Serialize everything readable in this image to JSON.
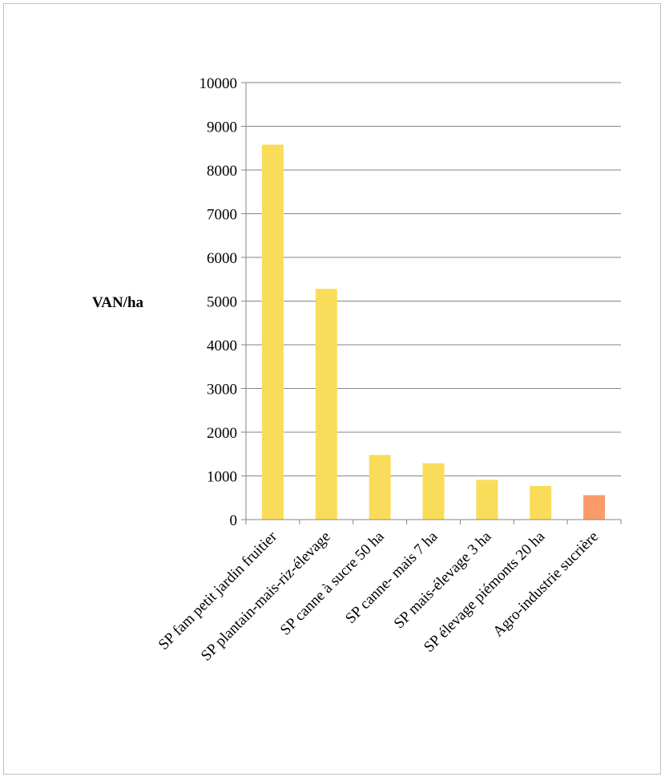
{
  "chart_data": {
    "type": "bar",
    "title": "",
    "xlabel": "",
    "ylabel": "VAN/ha",
    "ylim": [
      0,
      10000
    ],
    "yticks": [
      0,
      1000,
      2000,
      3000,
      4000,
      5000,
      6000,
      7000,
      8000,
      9000,
      10000
    ],
    "grid": true,
    "categories": [
      "SP fam petit jardin fruitier",
      "SP plantain-mais-riz-élevage",
      "SP canne à sucre 50 ha",
      "SP  canne- mais 7 ha",
      "SP mais-élevage 3 ha",
      "SP élevage piémonts 20 ha",
      "Agro-industrie sucrière"
    ],
    "values": [
      8580,
      5280,
      1480,
      1290,
      910,
      770,
      560
    ],
    "colors": [
      "#f9dd5a",
      "#f9dd5a",
      "#f9dd5a",
      "#f9dd5a",
      "#f9dd5a",
      "#f9dd5a",
      "#fa9c6a"
    ]
  }
}
